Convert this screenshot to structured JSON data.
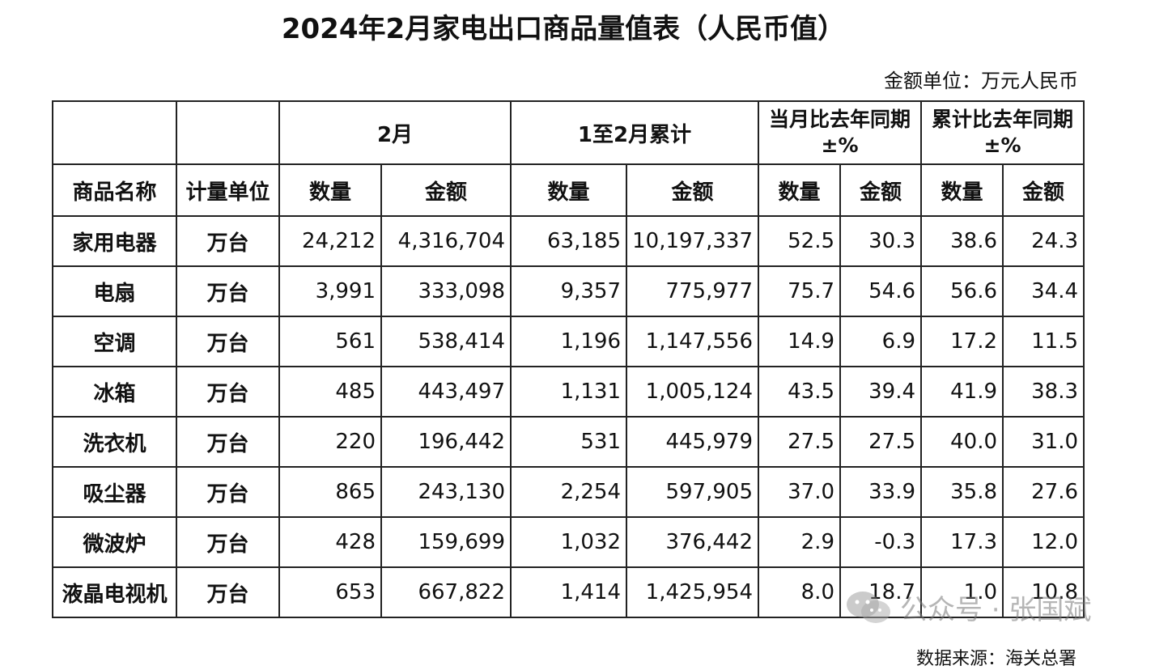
{
  "title": "2024年2月家电出口商品量值表（人民币值）",
  "unit_note": "金额单位：万元人民币",
  "header": {
    "group_feb": "2月",
    "group_cum": "1至2月累计",
    "group_month_yoy_l1": "当月比去年同期",
    "group_month_yoy_l2": "±%",
    "group_cum_yoy_l1": "累计比去年同期",
    "group_cum_yoy_l2": "±%",
    "col_name": "商品名称",
    "col_unit": "计量单位",
    "col_qty": "数量",
    "col_amt": "金额"
  },
  "rows": [
    {
      "name": "家用电器",
      "unit": "万台",
      "feb_qty": "24,212",
      "feb_amt": "4,316,704",
      "cum_qty": "63,185",
      "cum_amt": "10,197,337",
      "m_qty": "52.5",
      "m_amt": "30.3",
      "c_qty": "38.6",
      "c_amt": "24.3"
    },
    {
      "name": "电扇",
      "unit": "万台",
      "feb_qty": "3,991",
      "feb_amt": "333,098",
      "cum_qty": "9,357",
      "cum_amt": "775,977",
      "m_qty": "75.7",
      "m_amt": "54.6",
      "c_qty": "56.6",
      "c_amt": "34.4"
    },
    {
      "name": "空调",
      "unit": "万台",
      "feb_qty": "561",
      "feb_amt": "538,414",
      "cum_qty": "1,196",
      "cum_amt": "1,147,556",
      "m_qty": "14.9",
      "m_amt": "6.9",
      "c_qty": "17.2",
      "c_amt": "11.5"
    },
    {
      "name": "冰箱",
      "unit": "万台",
      "feb_qty": "485",
      "feb_amt": "443,497",
      "cum_qty": "1,131",
      "cum_amt": "1,005,124",
      "m_qty": "43.5",
      "m_amt": "39.4",
      "c_qty": "41.9",
      "c_amt": "38.3"
    },
    {
      "name": "洗衣机",
      "unit": "万台",
      "feb_qty": "220",
      "feb_amt": "196,442",
      "cum_qty": "531",
      "cum_amt": "445,979",
      "m_qty": "27.5",
      "m_amt": "27.5",
      "c_qty": "40.0",
      "c_amt": "31.0"
    },
    {
      "name": "吸尘器",
      "unit": "万台",
      "feb_qty": "865",
      "feb_amt": "243,130",
      "cum_qty": "2,254",
      "cum_amt": "597,905",
      "m_qty": "37.0",
      "m_amt": "33.9",
      "c_qty": "35.8",
      "c_amt": "27.6"
    },
    {
      "name": "微波炉",
      "unit": "万台",
      "feb_qty": "428",
      "feb_amt": "159,699",
      "cum_qty": "1,032",
      "cum_amt": "376,442",
      "m_qty": "2.9",
      "m_amt": "-0.3",
      "c_qty": "17.3",
      "c_amt": "12.0"
    },
    {
      "name": "液晶电视机",
      "unit": "万台",
      "feb_qty": "653",
      "feb_amt": "667,822",
      "cum_qty": "1,414",
      "cum_amt": "1,425,954",
      "m_qty": "8.0",
      "m_amt": "18.7",
      "c_qty": "1.0",
      "c_amt": "10.8"
    }
  ],
  "source": "数据来源：海关总署",
  "watermark": {
    "icon": "wechat-icon",
    "text": "公众号 · 张国斌"
  }
}
